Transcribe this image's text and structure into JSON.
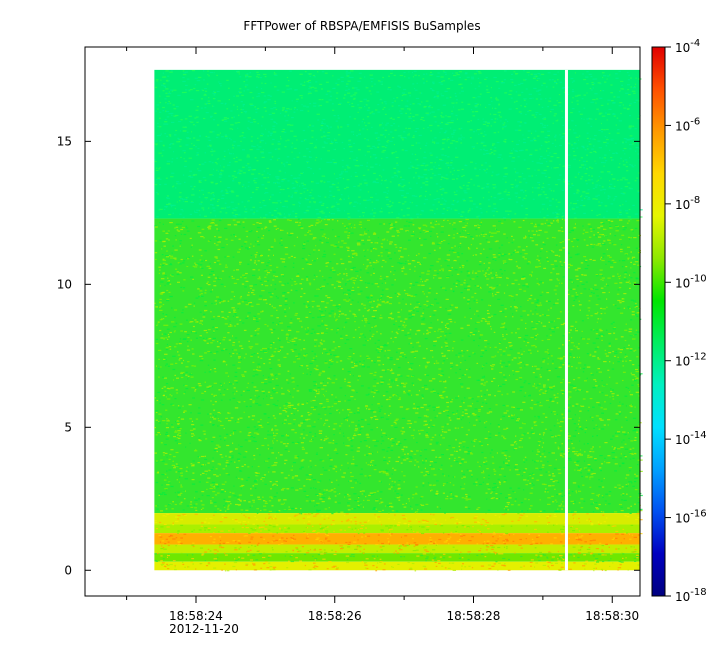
{
  "chart_data": {
    "type": "heatmap",
    "title": "FFTPower of RBSPA/EMFISIS  BuSamples",
    "xlabel": "",
    "ylabel": "",
    "x_ticks": [
      {
        "t": 24,
        "label": "18:58:24",
        "sublabel": "2012-11-20"
      },
      {
        "t": 26,
        "label": "18:58:26",
        "sublabel": ""
      },
      {
        "t": 28,
        "label": "18:58:28",
        "sublabel": ""
      },
      {
        "t": 30,
        "label": "18:58:30",
        "sublabel": ""
      }
    ],
    "x_minor_ticks": [
      23,
      25,
      27,
      29
    ],
    "xlim": [
      "18:58:22.4",
      "18:58:30.4"
    ],
    "y_ticks": [
      0,
      5,
      10,
      15
    ],
    "ylim": [
      -0.9,
      18.3
    ],
    "data_extent": {
      "x_start": "18:58:23.4",
      "x_end": "18:58:30.4",
      "y_min": 0,
      "y_max": 17.5
    },
    "data_gap": {
      "at": "18:58:29.34"
    },
    "bands": [
      {
        "y0": 12.3,
        "y1": 17.5,
        "level": "1e-12",
        "color": "#00ee74",
        "noise": [
          "#00f090",
          "#22ff55"
        ]
      },
      {
        "y0": 2.0,
        "y1": 12.3,
        "level": "1e-10",
        "color": "#33e62e",
        "noise": [
          "#88f000",
          "#00ee40",
          "#b4f000"
        ]
      },
      {
        "y0": 1.6,
        "y1": 2.0,
        "level": "1e-8",
        "color": "#d8ec00",
        "noise": [
          "#ffb400",
          "#f0f000"
        ]
      },
      {
        "y0": 1.3,
        "y1": 1.6,
        "level": "1e-9",
        "color": "#aaf000",
        "noise": [
          "#ffd000",
          "#77ee00"
        ]
      },
      {
        "y0": 0.9,
        "y1": 1.3,
        "level": "1e-7",
        "color": "#ffb000",
        "noise": [
          "#ff8000",
          "#ffd600"
        ]
      },
      {
        "y0": 0.6,
        "y1": 0.9,
        "level": "1e-9",
        "color": "#c4ee00",
        "noise": [
          "#ff9c00",
          "#88e800"
        ]
      },
      {
        "y0": 0.3,
        "y1": 0.6,
        "level": "1e-10",
        "color": "#6ee800",
        "noise": [
          "#ffd400",
          "#33e62e"
        ]
      },
      {
        "y0": 0.0,
        "y1": 0.3,
        "level": "1e-8",
        "color": "#e4f000",
        "noise": [
          "#ffa000",
          "#b0f000"
        ]
      }
    ],
    "colorbar": {
      "scale": "log",
      "range": [
        "1e-18",
        "1e-4"
      ],
      "ticks": [
        {
          "base": "10",
          "exp": "-4"
        },
        {
          "base": "10",
          "exp": "-6"
        },
        {
          "base": "10",
          "exp": "-8"
        },
        {
          "base": "10",
          "exp": "-10"
        },
        {
          "base": "10",
          "exp": "-12"
        },
        {
          "base": "10",
          "exp": "-14"
        },
        {
          "base": "10",
          "exp": "-16"
        },
        {
          "base": "10",
          "exp": "-18"
        }
      ],
      "colors": [
        "#e00000",
        "#ff5000",
        "#ff9a00",
        "#ffd800",
        "#e6f500",
        "#8ee800",
        "#00e600",
        "#00ee60",
        "#00f0c0",
        "#00e0ff",
        "#00a0ff",
        "#0050f0",
        "#0000c0",
        "#000080"
      ]
    }
  }
}
